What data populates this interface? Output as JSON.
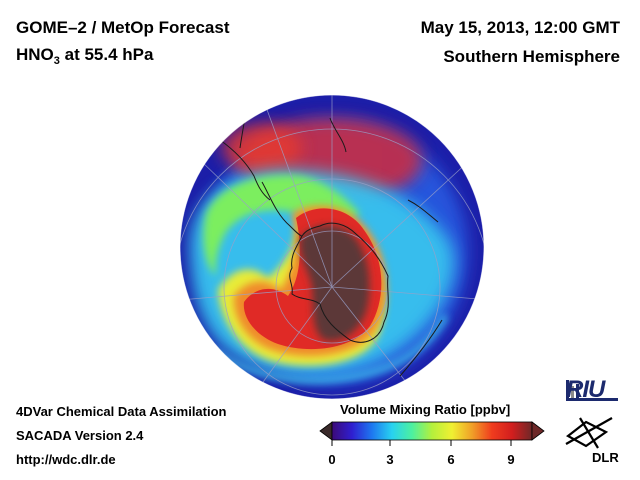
{
  "header": {
    "title_left_1": "GOME–2 / MetOp Forecast",
    "title_left_2_prefix": "HNO",
    "title_left_2_sub": "3",
    "title_left_2_suffix": " at 55.4 hPa",
    "title_right_1": "May 15, 2013, 12:00 GMT",
    "title_right_2": "Southern Hemisphere"
  },
  "footer": {
    "line1": "4DVar Chemical Data Assimilation",
    "line2": "SACADA Version 2.4",
    "line3": "http://wdc.dlr.de"
  },
  "colorbar": {
    "label": "Volume Mixing Ratio [ppbv]",
    "ticks": [
      "0",
      "3",
      "6",
      "9"
    ],
    "stops": [
      "#3c0a78",
      "#2f1fd0",
      "#1e78f0",
      "#28d2f0",
      "#4cf0a0",
      "#b4f03c",
      "#f0f032",
      "#f0a028",
      "#f03c1e",
      "#d21e1e",
      "#6e2828"
    ]
  },
  "logos": {
    "riu": "RIU",
    "dlr": "DLR"
  },
  "colors": {
    "ocean_deep": "#1c1ea8",
    "ocean_mid": "#2850e0",
    "band_cyan": "#3cc8f0",
    "band_green": "#7cf064",
    "band_yellow": "#f0f03c",
    "vortex_red": "#e82828",
    "vortex_core": "#5a3636"
  }
}
